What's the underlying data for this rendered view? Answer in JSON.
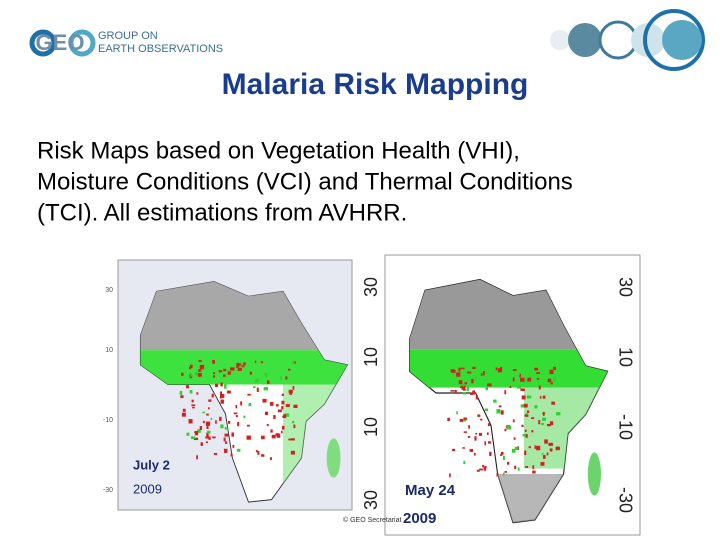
{
  "header": {
    "logo_mark": "GEO",
    "logo_line1": "GROUP ON",
    "logo_line2": "EARTH OBSERVATIONS"
  },
  "title": "Malaria Risk Mapping",
  "body": {
    "lines": [
      "Risk Maps based on Vegetation Health (VHI),",
      "Moisture Conditions (VCI) and Thermal Conditions",
      "(TCI). All estimations from AVHRR."
    ]
  },
  "maps": [
    {
      "date": "July  2",
      "year": "2009",
      "ticks": [
        "30",
        "10",
        "-10",
        "-30"
      ]
    },
    {
      "date": "May  24",
      "year": "2009",
      "left_ticks": [
        "30",
        "10",
        "10",
        "30"
      ],
      "right_ticks": [
        "30",
        "10",
        "-10",
        "-30"
      ]
    }
  ],
  "footer": {
    "credit": "© GEO Secretariat"
  }
}
